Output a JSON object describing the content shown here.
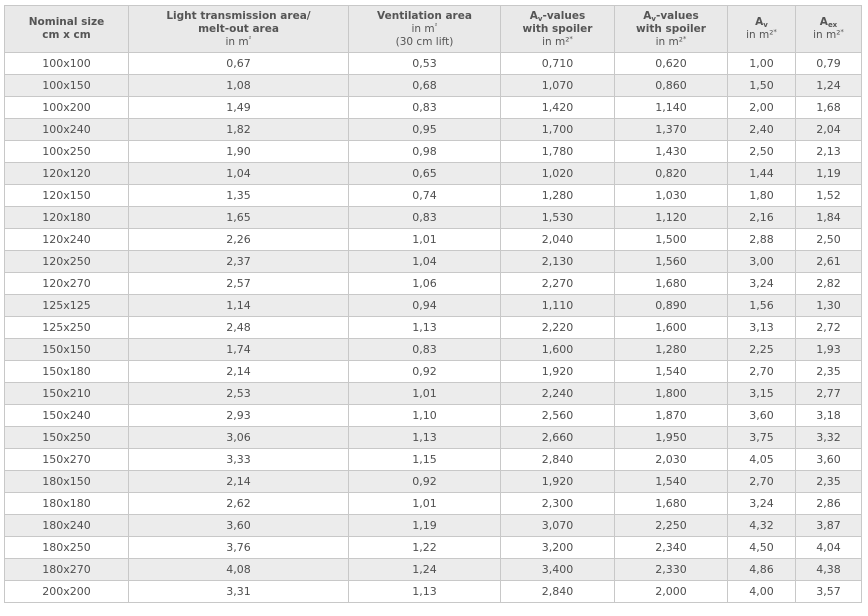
{
  "table": {
    "headers": {
      "nominal_size": {
        "line1": "Nominal size",
        "line2": "cm x cm"
      },
      "light": {
        "line1": "Light transmission area/",
        "line2": "melt-out area",
        "line3_text": "in m",
        "line3_sup": "²"
      },
      "ventilation": {
        "line1": "Ventilation area",
        "line2_text": "in m",
        "line2_sup": "²",
        "line3": "(30 cm lift)"
      },
      "aw_spoiler": {
        "letter": "A",
        "sub": "v",
        "suffix": "-values",
        "line2": "with spoiler",
        "line3_text": "in m²",
        "line3_sup": "*"
      },
      "aw_spoiler2": {
        "letter": "A",
        "sub": "v",
        "suffix": "-values",
        "line2": "with spoiler",
        "line3_text": "in m²",
        "line3_sup": "*"
      },
      "av": {
        "letter": "A",
        "sub": "v",
        "line2_text": "in m²",
        "line2_sup": "*"
      },
      "aex": {
        "letter": "A",
        "sub": "ex",
        "line2_text": "in m²",
        "line2_sup": "*"
      }
    },
    "rows": [
      [
        "100x100",
        "0,67",
        "0,53",
        "0,710",
        "0,620",
        "1,00",
        "0,79"
      ],
      [
        "100x150",
        "1,08",
        "0,68",
        "1,070",
        "0,860",
        "1,50",
        "1,24"
      ],
      [
        "100x200",
        "1,49",
        "0,83",
        "1,420",
        "1,140",
        "2,00",
        "1,68"
      ],
      [
        "100x240",
        "1,82",
        "0,95",
        "1,700",
        "1,370",
        "2,40",
        "2,04"
      ],
      [
        "100x250",
        "1,90",
        "0,98",
        "1,780",
        "1,430",
        "2,50",
        "2,13"
      ],
      [
        "120x120",
        "1,04",
        "0,65",
        "1,020",
        "0,820",
        "1,44",
        "1,19"
      ],
      [
        "120x150",
        "1,35",
        "0,74",
        "1,280",
        "1,030",
        "1,80",
        "1,52"
      ],
      [
        "120x180",
        "1,65",
        "0,83",
        "1,530",
        "1,120",
        "2,16",
        "1,84"
      ],
      [
        "120x240",
        "2,26",
        "1,01",
        "2,040",
        "1,500",
        "2,88",
        "2,50"
      ],
      [
        "120x250",
        "2,37",
        "1,04",
        "2,130",
        "1,560",
        "3,00",
        "2,61"
      ],
      [
        "120x270",
        "2,57",
        "1,06",
        "2,270",
        "1,680",
        "3,24",
        "2,82"
      ],
      [
        "125x125",
        "1,14",
        "0,94",
        "1,110",
        "0,890",
        "1,56",
        "1,30"
      ],
      [
        "125x250",
        "2,48",
        "1,13",
        "2,220",
        "1,600",
        "3,13",
        "2,72"
      ],
      [
        "150x150",
        "1,74",
        "0,83",
        "1,600",
        "1,280",
        "2,25",
        "1,93"
      ],
      [
        "150x180",
        "2,14",
        "0,92",
        "1,920",
        "1,540",
        "2,70",
        "2,35"
      ],
      [
        "150x210",
        "2,53",
        "1,01",
        "2,240",
        "1,800",
        "3,15",
        "2,77"
      ],
      [
        "150x240",
        "2,93",
        "1,10",
        "2,560",
        "1,870",
        "3,60",
        "3,18"
      ],
      [
        "150x250",
        "3,06",
        "1,13",
        "2,660",
        "1,950",
        "3,75",
        "3,32"
      ],
      [
        "150x270",
        "3,33",
        "1,15",
        "2,840",
        "2,030",
        "4,05",
        "3,60"
      ],
      [
        "180x150",
        "2,14",
        "0,92",
        "1,920",
        "1,540",
        "2,70",
        "2,35"
      ],
      [
        "180x180",
        "2,62",
        "1,01",
        "2,300",
        "1,680",
        "3,24",
        "2,86"
      ],
      [
        "180x240",
        "3,60",
        "1,19",
        "3,070",
        "2,250",
        "4,32",
        "3,87"
      ],
      [
        "180x250",
        "3,76",
        "1,22",
        "3,200",
        "2,340",
        "4,50",
        "4,04"
      ],
      [
        "180x270",
        "4,08",
        "1,24",
        "3,400",
        "2,330",
        "4,86",
        "4,38"
      ],
      [
        "200x200",
        "3,31",
        "1,13",
        "2,840",
        "2,000",
        "4,00",
        "3,57"
      ]
    ]
  }
}
